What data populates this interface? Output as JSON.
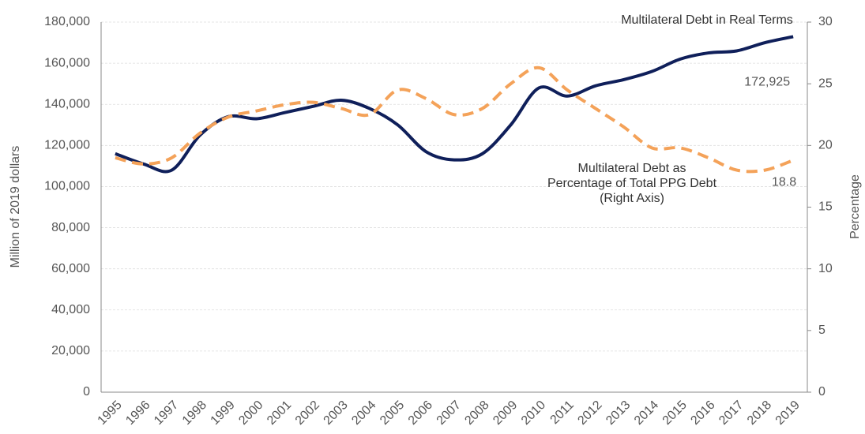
{
  "chart_data": {
    "type": "line",
    "categories": [
      "1995",
      "1996",
      "1997",
      "1998",
      "1999",
      "2000",
      "2001",
      "2002",
      "2003",
      "2004",
      "2005",
      "2006",
      "2007",
      "2008",
      "2009",
      "2010",
      "2011",
      "2012",
      "2013",
      "2014",
      "2015",
      "2016",
      "2017",
      "2018",
      "2019"
    ],
    "series": [
      {
        "name": "Multilateral Debt in Real Terms",
        "color": "#0f1f5a",
        "values": [
          116000,
          111000,
          108000,
          125000,
          134000,
          133000,
          136000,
          139000,
          142000,
          138000,
          130000,
          117000,
          113000,
          116000,
          130000,
          148000,
          144000,
          149000,
          152000,
          156000,
          162000,
          165000,
          166000,
          170000,
          172925
        ],
        "value_labels": [
          null,
          null,
          null,
          null,
          null,
          null,
          null,
          null,
          null,
          null,
          null,
          null,
          null,
          null,
          null,
          null,
          null,
          null,
          null,
          null,
          null,
          null,
          null,
          null,
          "172,925"
        ]
      },
      {
        "name": "Multilateral Debt as Percentage of Total PPG Debt (Right Axis)",
        "color": "#f4a259",
        "axis": "y2",
        "dashed": true,
        "values": [
          19.0,
          18.5,
          19.0,
          21.0,
          22.3,
          22.8,
          23.3,
          23.5,
          23.0,
          22.5,
          24.5,
          23.8,
          22.5,
          23.0,
          25.0,
          26.3,
          24.5,
          23.0,
          21.5,
          19.8,
          19.8,
          19.0,
          18.0,
          18.0,
          18.8
        ]
      }
    ],
    "ylabel": "Million of 2019 dollars",
    "y2label": "Percentage",
    "ylim": [
      0,
      180000
    ],
    "yticks": [
      0,
      {
        "value": 20000,
        "label": "20,000"
      },
      {
        "value": 40000,
        "label": "40,000"
      },
      {
        "value": 60000,
        "label": "60,000"
      },
      {
        "value": 80000,
        "label": "80,000"
      },
      {
        "value": 100000,
        "label": "100,000"
      },
      {
        "value": 120000,
        "label": "120,000"
      },
      {
        "value": 140000,
        "label": "140,000"
      },
      {
        "value": 160000,
        "label": "160,000"
      },
      {
        "value": 180000,
        "label": "180,000"
      }
    ],
    "y2lim": [
      0,
      30
    ],
    "y2ticks": [
      0,
      5,
      10,
      15,
      20,
      25,
      30
    ],
    "grid": true
  }
}
